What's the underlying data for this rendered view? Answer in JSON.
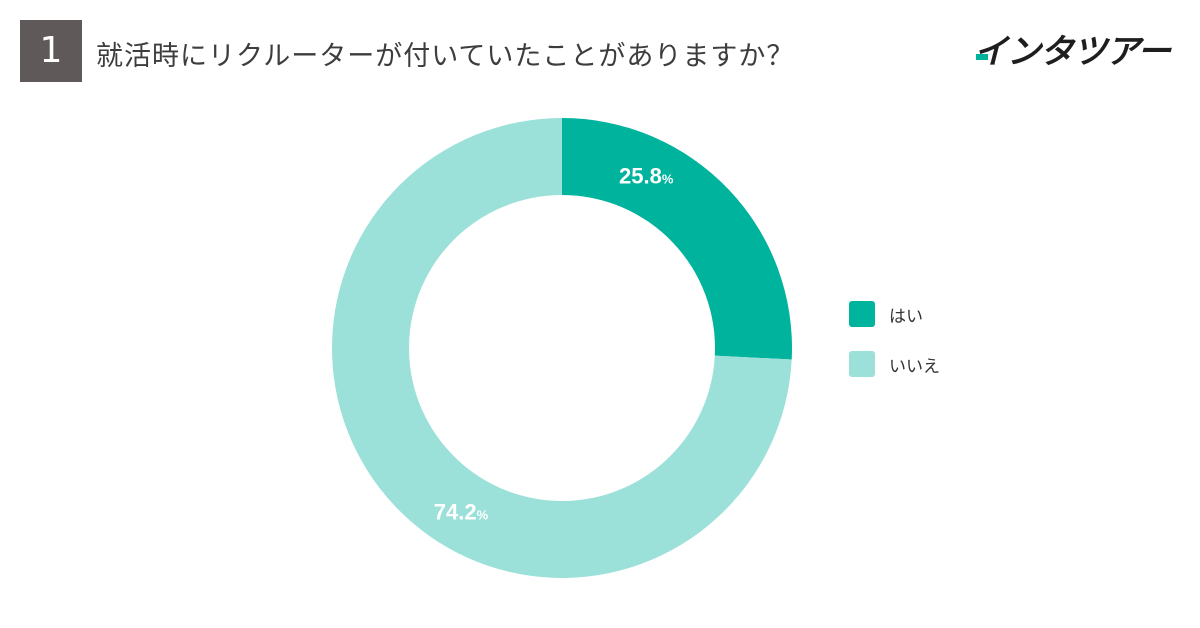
{
  "header": {
    "question_number": "1",
    "question": "就活時にリクルーターが付いていたことがありますか？",
    "brand": "インタツアー"
  },
  "colors": {
    "badge": "#5f5a59",
    "yes": "#00b39d",
    "no": "#9ce1d9",
    "brand_accent": "#00b39d"
  },
  "chart_data": {
    "type": "pie",
    "donut": true,
    "unit": "%",
    "slices": [
      {
        "label": "はい",
        "value": 25.8,
        "value_text": "25.8",
        "color": "#00b39d"
      },
      {
        "label": "いいえ",
        "value": 74.2,
        "value_text": "74.2",
        "color": "#9ce1d9"
      }
    ],
    "legend_position": "right"
  }
}
